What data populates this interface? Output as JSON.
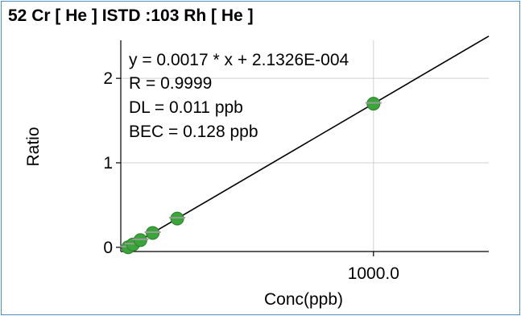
{
  "chart_data": {
    "type": "scatter",
    "title": "52  Cr  [ He ]  ISTD :103  Rh  [ He ]",
    "xlabel": "Conc(ppb)",
    "ylabel": "Ratio",
    "xlim": [
      -30,
      1470
    ],
    "ylim": [
      -0.05,
      2.45
    ],
    "grid": true,
    "x_ticks": [
      {
        "value": 1000,
        "label": "1000.0"
      }
    ],
    "y_ticks": [
      {
        "value": 0,
        "label": "0"
      },
      {
        "value": 1,
        "label": "1"
      },
      {
        "value": 2,
        "label": "2"
      }
    ],
    "points": [
      {
        "x": 0,
        "y": 0.0002
      },
      {
        "x": 20,
        "y": 0.034
      },
      {
        "x": 50,
        "y": 0.085
      },
      {
        "x": 100,
        "y": 0.17
      },
      {
        "x": 200,
        "y": 0.34
      },
      {
        "x": 1000,
        "y": 1.7
      }
    ],
    "fit": {
      "slope": 0.0017,
      "intercept": 0.00021326
    },
    "annotations": [
      "y = 0.0017 * x  + 2.1326E-004",
      "R =  0.9999",
      "DL = 0.011 ppb",
      "BEC = 0.128 ppb"
    ],
    "colors": {
      "point": "#3aa63a",
      "fit_line": "#000000",
      "grid": "#d0d0d0",
      "frame": "#4a90c8"
    }
  }
}
